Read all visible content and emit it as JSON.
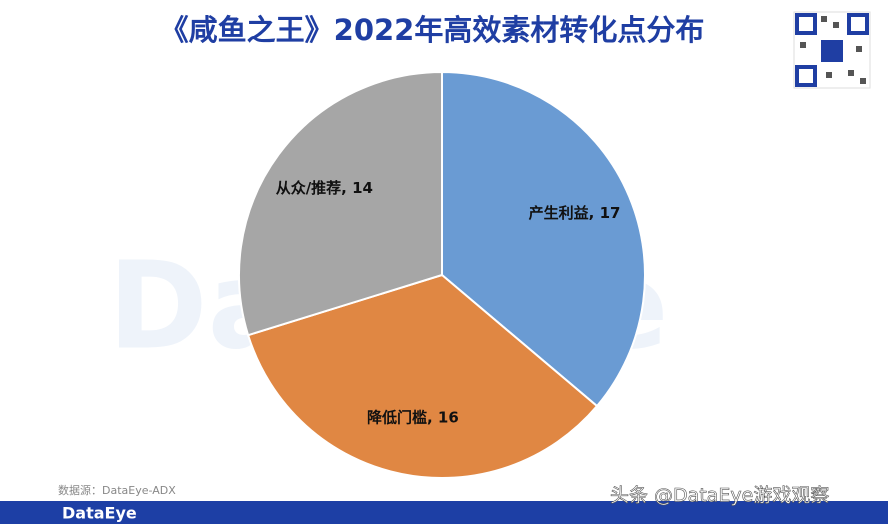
{
  "chart_data": {
    "type": "pie",
    "title": "《咸鱼之王》2022年高效素材转化点分布",
    "values": [
      17,
      16,
      14
    ],
    "value_labels": [
      "产生利益, 17",
      "降低门槛, 16",
      "从众/推荐, 14"
    ],
    "colors": [
      "#6a9bd3",
      "#e08743",
      "#a6a6a6"
    ]
  },
  "source": "数据源：DataEye-ADX",
  "brand": "DataEye",
  "watermark": "头条 @DataEye游戏观察"
}
